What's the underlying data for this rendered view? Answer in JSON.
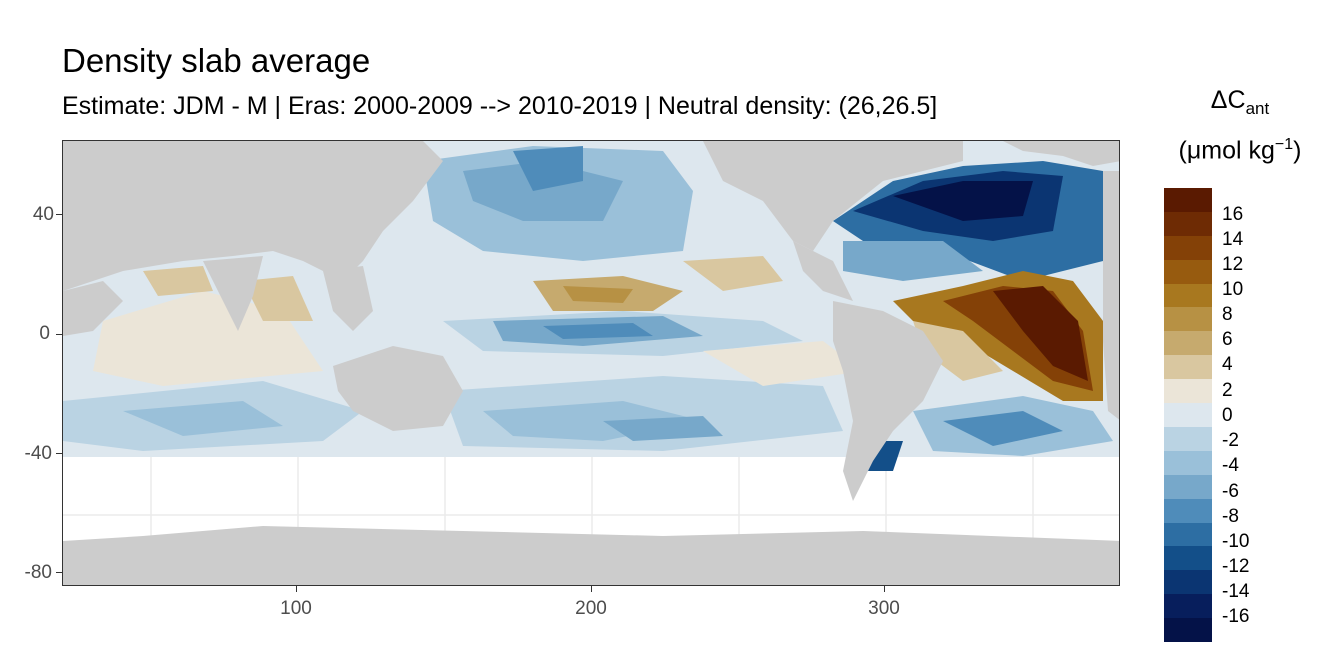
{
  "title": "Density slab average",
  "subtitle": "Estimate: JDM - M | Eras: 2000-2009 --> 2010-2019 | Neutral density: (26,26.5]",
  "legend": {
    "title_symbol": "ΔC",
    "title_sub": "ant",
    "units_main": "(μmol kg",
    "units_sup": "−1",
    "units_close": ")",
    "labels": [
      "16",
      "14",
      "12",
      "10",
      "8",
      "6",
      "4",
      "2",
      "0",
      "-2",
      "-4",
      "-6",
      "-8",
      "-10",
      "-12",
      "-14",
      "-16"
    ],
    "colors": [
      "#5a1a01",
      "#6e2b04",
      "#844107",
      "#975b0f",
      "#a8781f",
      "#b79144",
      "#c6aa6e",
      "#d9c7a0",
      "#ebe5d8",
      "#dde7ee",
      "#bad3e3",
      "#9ac0d9",
      "#77a8ca",
      "#4f8cba",
      "#2d6ea3",
      "#134f89",
      "#0b3572",
      "#071e5c",
      "#041248"
    ]
  },
  "axes": {
    "x_ticks": [
      "100",
      "200",
      "300"
    ],
    "y_ticks": [
      "40",
      "0",
      "-40",
      "-80"
    ]
  },
  "colors": {
    "land": "#cccccc",
    "no_data": "#ffffff",
    "grid": "#ebebeb"
  }
}
